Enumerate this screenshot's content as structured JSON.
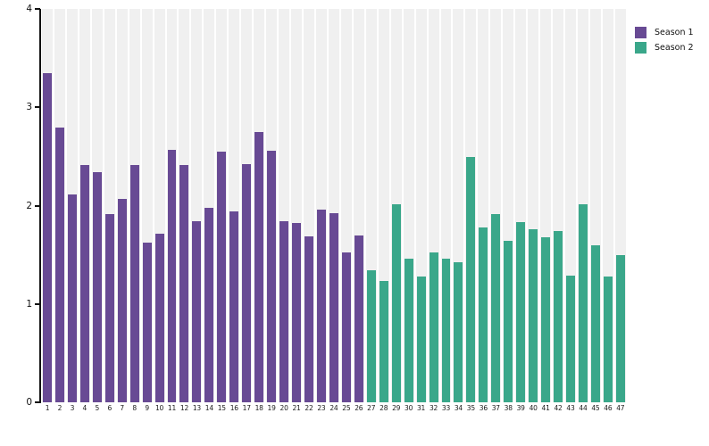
{
  "chart_data": {
    "type": "bar",
    "title": "",
    "xlabel": "",
    "ylabel": "",
    "ylim": [
      0,
      4
    ],
    "yticks": [
      0,
      1,
      2,
      3,
      4
    ],
    "grid": "off",
    "plot_band_color": "#f0f0f0",
    "background_color": "#ffffff",
    "legend_position": "top-right-outside",
    "categories": [
      1,
      2,
      3,
      4,
      5,
      6,
      7,
      8,
      9,
      10,
      11,
      12,
      13,
      14,
      15,
      16,
      17,
      18,
      19,
      20,
      21,
      22,
      23,
      24,
      25,
      26,
      27,
      28,
      29,
      30,
      31,
      32,
      33,
      34,
      35,
      36,
      37,
      38,
      39,
      40,
      41,
      42,
      43,
      44,
      45,
      46,
      47
    ],
    "series": [
      {
        "name": "Season 1",
        "color": "#684a94",
        "categories_range": [
          1,
          26
        ],
        "values": [
          3.35,
          2.79,
          2.11,
          2.41,
          2.34,
          1.91,
          2.07,
          2.41,
          1.62,
          1.71,
          2.57,
          2.41,
          1.84,
          1.98,
          2.55,
          1.94,
          2.42,
          2.75,
          2.56,
          1.84,
          1.82,
          1.69,
          1.96,
          1.92,
          1.52,
          1.7
        ]
      },
      {
        "name": "Season 2",
        "color": "#3aa78a",
        "categories_range": [
          27,
          47
        ],
        "values": [
          1.34,
          1.23,
          2.01,
          1.46,
          1.28,
          1.52,
          1.46,
          1.42,
          2.49,
          1.78,
          1.91,
          1.64,
          1.83,
          1.76,
          1.68,
          1.74,
          1.29,
          2.01,
          1.6,
          1.28,
          1.5
        ]
      }
    ]
  },
  "legend": {
    "items": [
      {
        "label": "Season 1",
        "color": "#684a94"
      },
      {
        "label": "Season 2",
        "color": "#3aa78a"
      }
    ]
  },
  "axes": {
    "y_tick_labels": [
      "0",
      "1",
      "2",
      "3",
      "4"
    ]
  }
}
